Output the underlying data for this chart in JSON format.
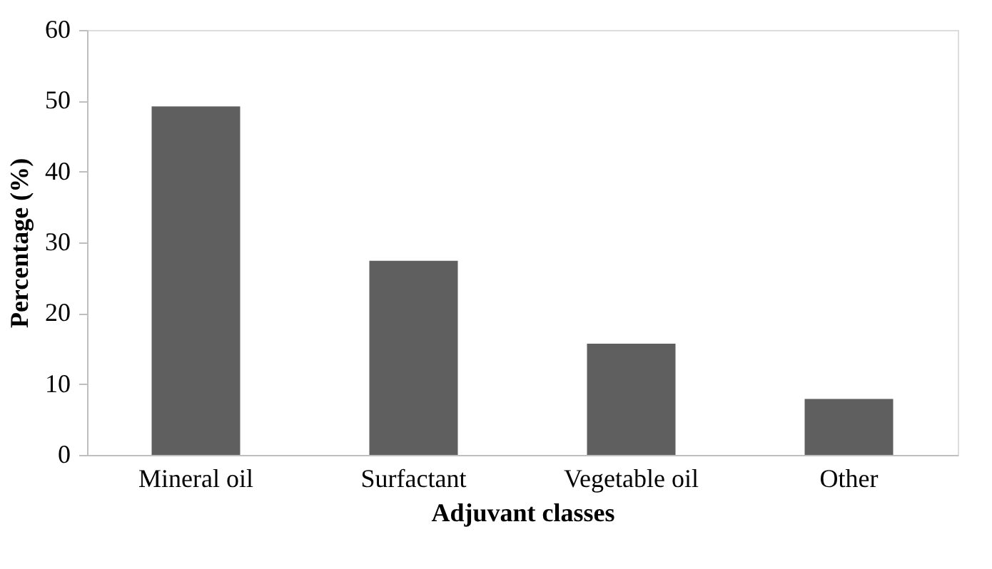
{
  "chart_data": {
    "type": "bar",
    "xlabel": "Adjuvant classes",
    "ylabel": "Percentage (%)",
    "categories": [
      "Mineral oil",
      "Surfactant",
      "Vegetable oil",
      "Other"
    ],
    "values": [
      49.2,
      27.4,
      15.7,
      7.9
    ],
    "color": "#5f5f5f",
    "ylim": [
      0,
      60
    ],
    "yticks": [
      0,
      10,
      20,
      30,
      40,
      50,
      60
    ],
    "grid": false
  }
}
